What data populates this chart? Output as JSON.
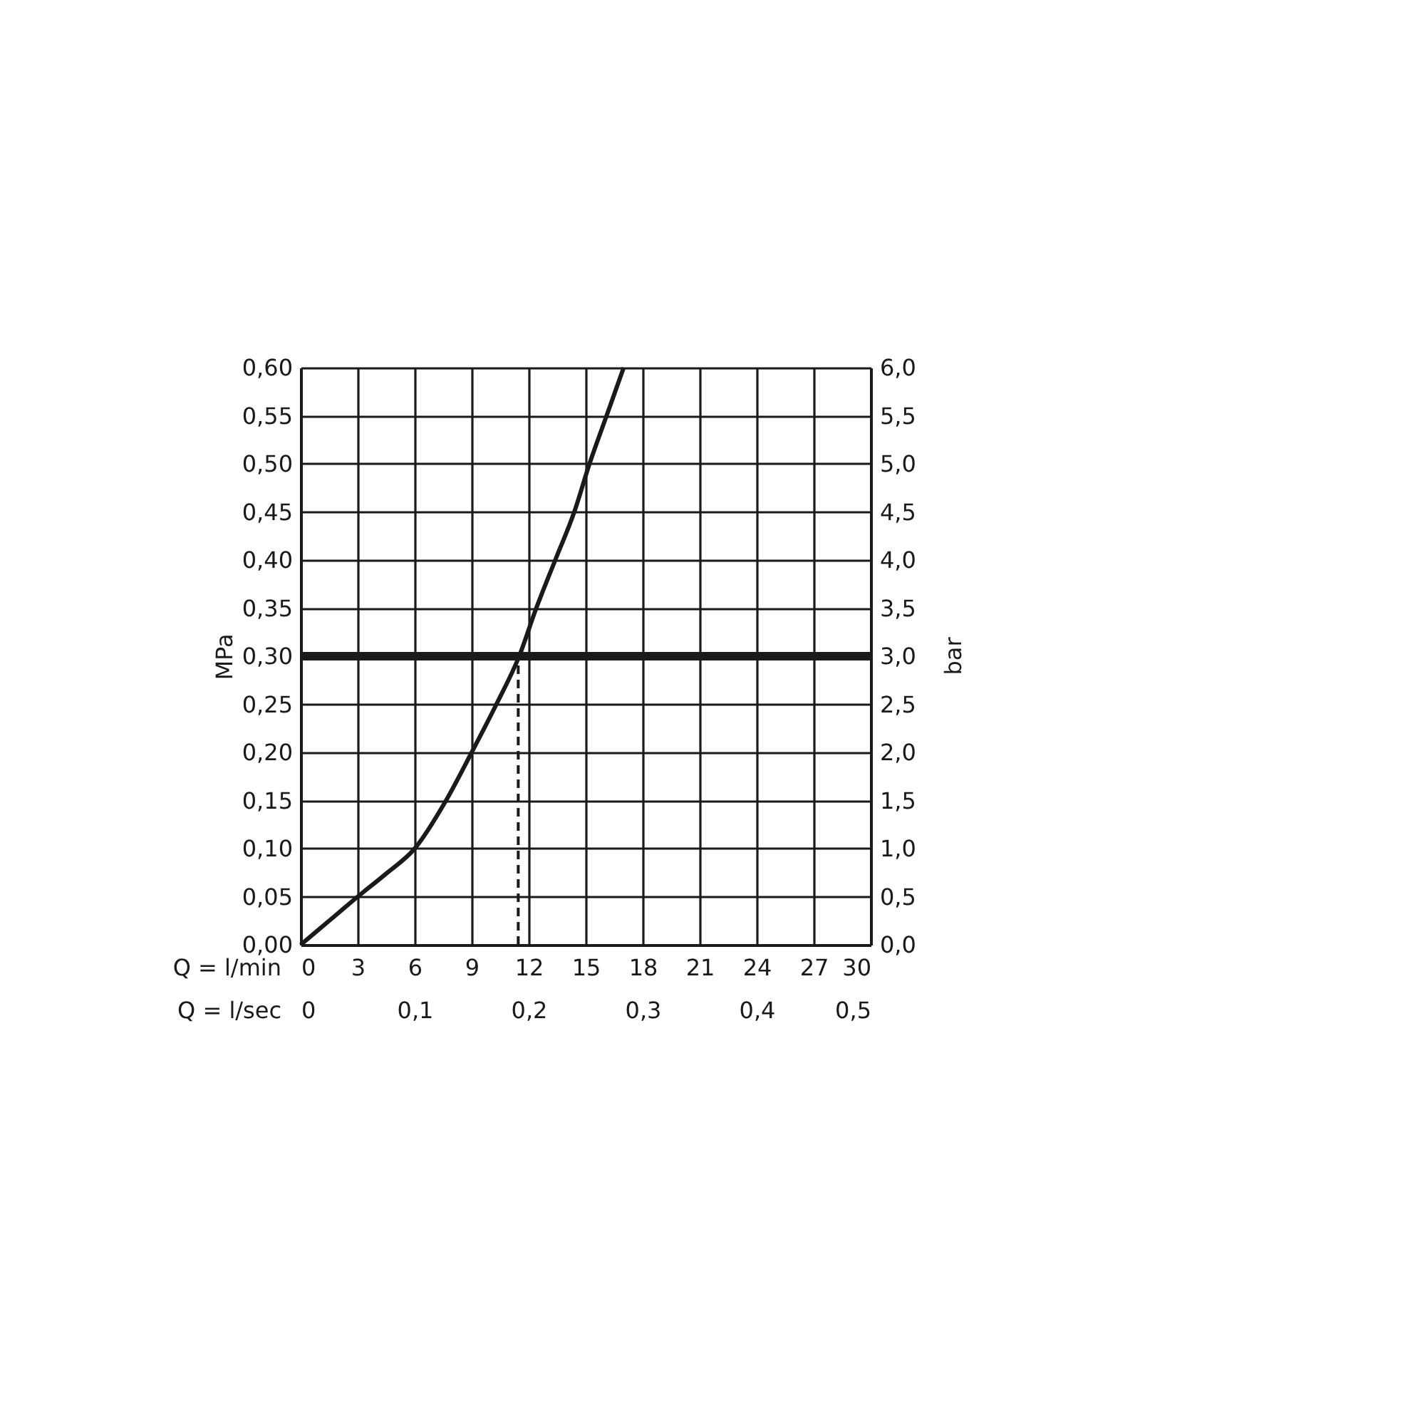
{
  "chart_data": {
    "type": "line",
    "xlabel": "Q = l/min",
    "x2label": "Q = l/sec",
    "ylabel": "MPa",
    "y2label": "bar",
    "xlim": [
      0,
      30
    ],
    "xticks": [
      0,
      3,
      6,
      9,
      12,
      15,
      18,
      21,
      24,
      27,
      30
    ],
    "x2lim": [
      0,
      0.5
    ],
    "x2ticks": [
      0,
      {
        "value": 0.1,
        "label": "0,1"
      },
      {
        "value": 0.2,
        "label": "0,2"
      },
      {
        "value": 0.3,
        "label": "0,3"
      },
      {
        "value": 0.4,
        "label": "0,4"
      },
      {
        "value": 0.5,
        "label": "0,5"
      }
    ],
    "ylim": [
      0,
      0.6
    ],
    "yticks": [
      {
        "value": 0,
        "label": "0,00"
      },
      {
        "value": 0.05,
        "label": "0,05"
      },
      {
        "value": 0.1,
        "label": "0,10"
      },
      {
        "value": 0.15,
        "label": "0,15"
      },
      {
        "value": 0.2,
        "label": "0,20"
      },
      {
        "value": 0.25,
        "label": "0,25"
      },
      {
        "value": 0.3,
        "label": "0,30"
      },
      {
        "value": 0.35,
        "label": "0,35"
      },
      {
        "value": 0.4,
        "label": "0,40"
      },
      {
        "value": 0.45,
        "label": "0,45"
      },
      {
        "value": 0.5,
        "label": "0,50"
      },
      {
        "value": 0.55,
        "label": "0,55"
      },
      {
        "value": 0.6,
        "label": "0,60"
      }
    ],
    "y2lim": [
      0,
      6
    ],
    "y2ticks": [
      {
        "value": 0,
        "label": "0,0"
      },
      {
        "value": 0.5,
        "label": "0,5"
      },
      {
        "value": 1,
        "label": "1,0"
      },
      {
        "value": 1.5,
        "label": "1,5"
      },
      {
        "value": 2,
        "label": "2,0"
      },
      {
        "value": 2.5,
        "label": "2,5"
      },
      {
        "value": 3,
        "label": "3,0"
      },
      {
        "value": 3.5,
        "label": "3,5"
      },
      {
        "value": 4,
        "label": "4,0"
      },
      {
        "value": 4.5,
        "label": "4,5"
      },
      {
        "value": 5,
        "label": "5,0"
      },
      {
        "value": 5.5,
        "label": "5,5"
      },
      {
        "value": 6,
        "label": "6,0"
      }
    ],
    "grid": true,
    "series": [
      {
        "color": "#1a1a1a",
        "line_style": "solid",
        "x": [
          0,
          1.5,
          3,
          4.5,
          6,
          7.65,
          9,
          10.3,
          11.5,
          12.4,
          13.4,
          14.4,
          15.2,
          16.1,
          17.0
        ],
        "values": [
          0,
          0.025,
          0.05,
          0.074,
          0.1,
          0.15,
          0.2,
          0.25,
          0.3,
          0.35,
          0.4,
          0.45,
          0.5,
          0.55,
          0.6
        ]
      },
      {
        "color": "#1a1a1a",
        "line_style": "dashed",
        "x": [
          11.45,
          11.45
        ],
        "values": [
          0,
          0.3
        ]
      }
    ],
    "ref_lines": [
      {
        "axis": "y",
        "value": 0.3,
        "color": "#1a1a1a"
      }
    ]
  }
}
